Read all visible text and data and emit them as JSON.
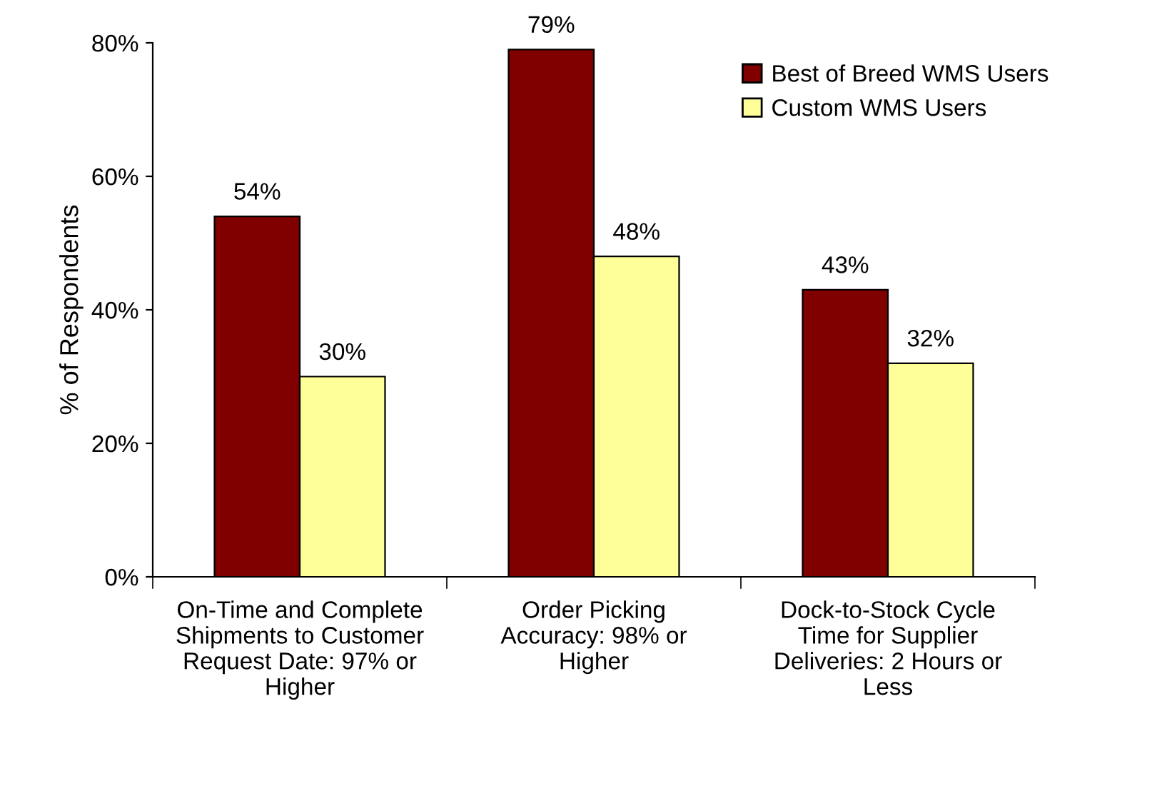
{
  "chart_data": {
    "type": "bar",
    "ylabel": "% of Respondents",
    "categories": [
      "On-Time and Complete Shipments to Customer Request Date: 97% or Higher",
      "Order Picking Accuracy: 98% or Higher",
      "Dock-to-Stock Cycle Time for Supplier Deliveries: 2 Hours or Less"
    ],
    "series": [
      {
        "name": "Best of Breed WMS Users",
        "color": "#800000",
        "values": [
          54,
          79,
          43
        ],
        "value_labels": [
          "54%",
          "79%",
          "43%"
        ]
      },
      {
        "name": "Custom WMS Users",
        "color": "#ffff99",
        "values": [
          30,
          48,
          32
        ],
        "value_labels": [
          "30%",
          "48%",
          "32%"
        ]
      }
    ],
    "ylim": [
      0,
      80
    ],
    "yticks": [
      {
        "value": 0,
        "label": "0%"
      },
      {
        "value": 20,
        "label": "20%"
      },
      {
        "value": 40,
        "label": "40%"
      },
      {
        "value": 60,
        "label": "60%"
      },
      {
        "value": 80,
        "label": "80%"
      }
    ],
    "grid": false,
    "legend": "top right"
  }
}
